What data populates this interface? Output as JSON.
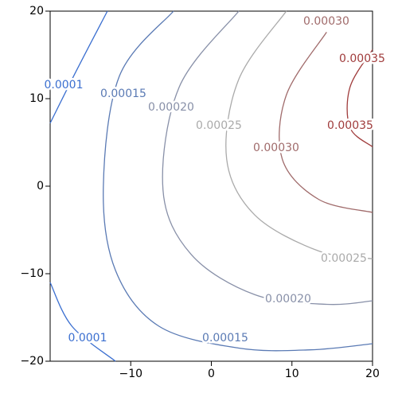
{
  "chart_data": {
    "type": "contour",
    "xlim": [
      -20,
      20
    ],
    "ylim": [
      -20,
      20
    ],
    "xticks": [
      {
        "value": -10,
        "label": "−10"
      },
      0,
      10,
      20
    ],
    "yticks": [
      {
        "value": -20,
        "label": "−20"
      },
      {
        "value": -10,
        "label": "−10"
      },
      0,
      10,
      20
    ],
    "series": [
      {
        "name": "0.0001",
        "color": "#3b6fd0",
        "x": [
          -20,
          -16.8,
          -12.9
        ],
        "y": [
          7.2,
          13.1,
          20
        ]
      },
      {
        "name": "0.0001",
        "color": "#3b6fd0",
        "x": [
          -20,
          -17.3,
          -11.9
        ],
        "y": [
          -11,
          -16,
          -20
        ]
      },
      {
        "name": "0.00015",
        "color": "#5a7ab4",
        "x": [
          -4.7,
          -11.4,
          -13.4,
          -11.9,
          -6.5,
          3.4,
          12.3,
          20
        ],
        "y": [
          20,
          12.6,
          -0.1,
          -9.6,
          -16,
          -18.5,
          -18.7,
          -18
        ]
      },
      {
        "name": "0.00020",
        "color": "#8890a8",
        "x": [
          3.4,
          -4,
          -6,
          -2.5,
          5.4,
          14.3,
          20
        ],
        "y": [
          20,
          11.3,
          -0.4,
          -7.8,
          -12.4,
          -13.5,
          -13.1
        ]
      },
      {
        "name": "0.00025",
        "color": "#aaaaaa",
        "x": [
          9.3,
          3.4,
          1.9,
          5.4,
          13.3,
          20
        ],
        "y": [
          20,
          12.2,
          3.1,
          -3.3,
          -7.4,
          -8.3
        ]
      },
      {
        "name": "0.00030",
        "color": "#a06b6b",
        "x": [
          14.3,
          9.3,
          8.8,
          13.3,
          20
        ],
        "y": [
          17.6,
          10.4,
          3.1,
          -1.5,
          -3
        ]
      },
      {
        "name": "0.00035",
        "color": "#a03c3c",
        "x": [
          20,
          17.2,
          17.2,
          20
        ],
        "y": [
          15.6,
          11.3,
          6.7,
          4.5
        ]
      }
    ]
  }
}
